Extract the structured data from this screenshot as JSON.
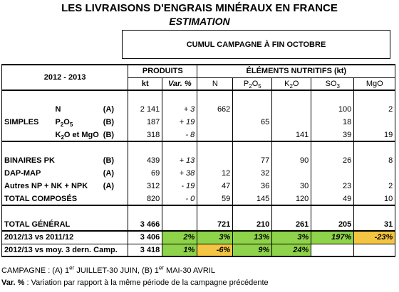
{
  "title": "LES LIVRAISONS D'ENGRAIS MINÉRAUX EN FRANCE",
  "subtitle": "ESTIMATION",
  "cumul_label": "CUMUL CAMPAGNE À FIN OCTOBRE",
  "header": {
    "period": "2012 - 2013",
    "produits": "PRODUITS",
    "elements": "ÉLÉMENTS NUTRITIFS (kt)",
    "col_kt": "kt",
    "col_var": "Var. %",
    "col_n": "N",
    "col_p_base": "P",
    "col_p_sub1": "2",
    "col_p_mid": "O",
    "col_p_sub2": "5",
    "col_k_base": "K",
    "col_k_sub": "2",
    "col_k_end": "O",
    "col_s_base": "SO",
    "col_s_sub": "3",
    "col_mg": "MgO"
  },
  "rows": {
    "n": {
      "label": "N",
      "camp": "(A)",
      "kt": "2 141",
      "var": "+ 3",
      "n": "662",
      "p": "",
      "k": "",
      "s": "100",
      "mg": "2"
    },
    "p": {
      "group": "SIMPLES",
      "label_base": "P",
      "label_sub1": "2",
      "label_mid": "O",
      "label_sub2": "5",
      "camp": "(B)",
      "kt": "187",
      "var": "+ 19",
      "n": "",
      "p": "65",
      "k": "",
      "s": "18",
      "mg": ""
    },
    "k": {
      "label_base": "K",
      "label_sub": "2",
      "label_end": "O et MgO",
      "camp": "(B)",
      "kt": "318",
      "var": "- 8",
      "n": "",
      "p": "",
      "k": "141",
      "s": "39",
      "mg": "19"
    },
    "pk": {
      "label": "BINAIRES PK",
      "camp": "(B)",
      "kt": "439",
      "var": "+ 13",
      "n": "",
      "p": "77",
      "k": "90",
      "s": "26",
      "mg": "8"
    },
    "dap": {
      "label": "DAP-MAP",
      "camp": "(A)",
      "kt": "69",
      "var": "+ 38",
      "n": "12",
      "p": "32",
      "k": "",
      "s": "",
      "mg": ""
    },
    "npk": {
      "label": "Autres NP + NK + NPK",
      "camp": "(A)",
      "kt": "312",
      "var": "- 19",
      "n": "47",
      "p": "36",
      "k": "30",
      "s": "23",
      "mg": "2"
    },
    "total_comp": {
      "label": "TOTAL COMPOSÉS",
      "kt": "820",
      "var": "- 0",
      "n": "59",
      "p": "145",
      "k": "120",
      "s": "49",
      "mg": "10"
    },
    "total_gen": {
      "label": "TOTAL GÉNÉRAL",
      "kt": "3 466",
      "n": "721",
      "p": "210",
      "k": "261",
      "s": "205",
      "mg": "31"
    },
    "vs1112": {
      "label": "2012/13 vs 2011/12",
      "kt": "3 406",
      "var": "2%",
      "n": "3%",
      "p": "13%",
      "k": "3%",
      "s": "197%",
      "mg": "-23%"
    },
    "vsmoy": {
      "label": "2012/13 vs moy. 3 dern. Camp.",
      "kt": "3 418",
      "var": "1%",
      "n": "-6%",
      "p": "9%",
      "k": "24%",
      "s": "",
      "mg": ""
    }
  },
  "footer": {
    "campagne_a": "CAMPAGNE : (A) 1",
    "sup_a": "er",
    "campagne_mid": " JUILLET-30 JUIN, (B) 1",
    "sup_b": "er",
    "campagne_end": " MAI-30 AVRIL",
    "var_label": "Var. % ",
    "var_text": ": Variation par rapport à la même période de la campagne précédente"
  },
  "colors": {
    "green": "#8fd34a",
    "yellow": "#f4c542"
  }
}
